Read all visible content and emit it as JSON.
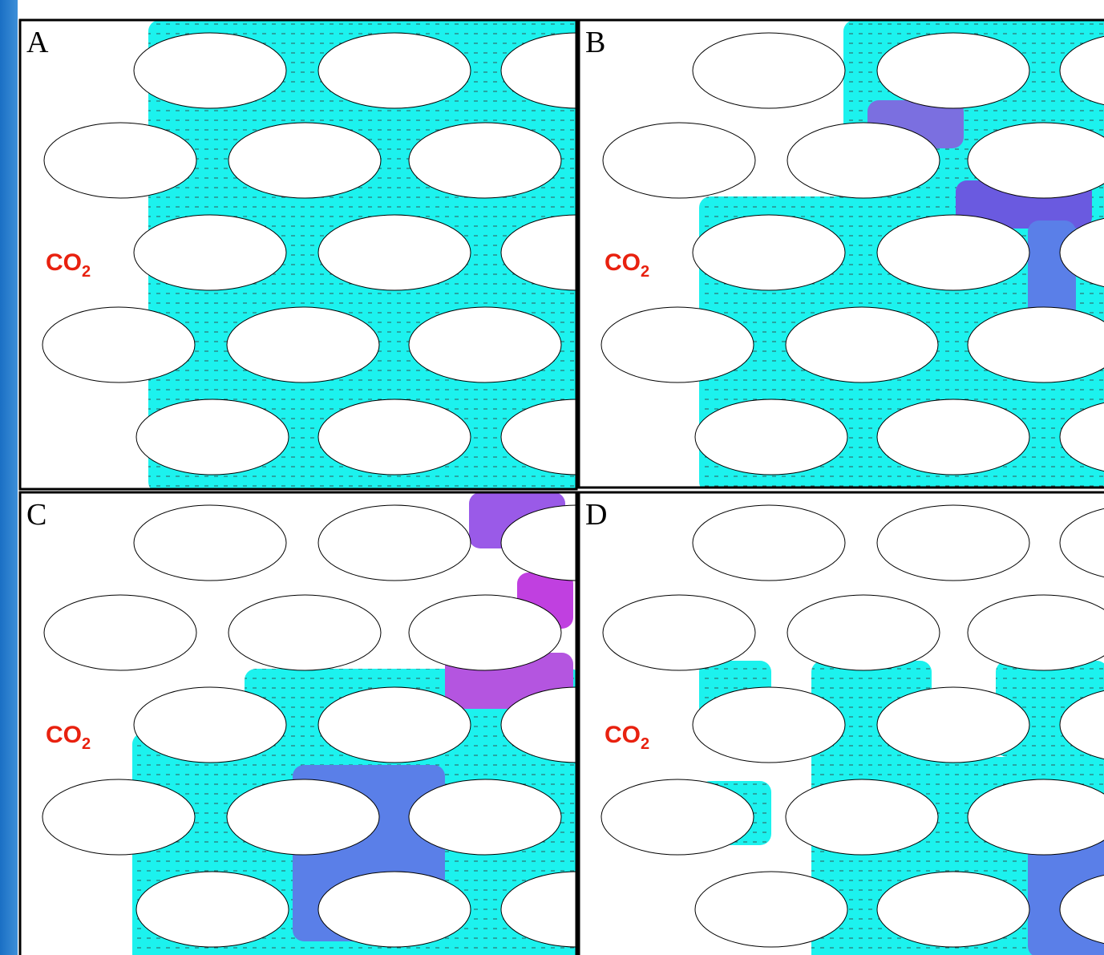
{
  "panels": [
    {
      "label": "A",
      "annotation": "CO",
      "annotation_subscript": "2"
    },
    {
      "label": "B",
      "annotation": "CO",
      "annotation_subscript": "2"
    },
    {
      "label": "C",
      "annotation": "CO",
      "annotation_subscript": "2"
    },
    {
      "label": "D",
      "annotation": "CO",
      "annotation_subscript": "2"
    }
  ]
}
